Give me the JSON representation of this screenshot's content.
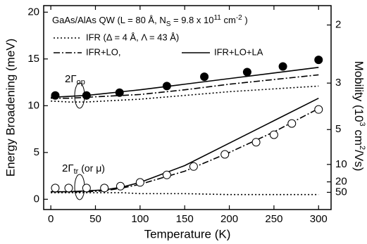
{
  "chart_data": {
    "type": "line",
    "title": [
      "GaAs/AlAs QW (L = 80 Å, N",
      "S",
      " = 9.8 x 10",
      "11",
      " cm",
      "-2",
      " )"
    ],
    "xlabel": "Temperature (K)",
    "ylabel": "Energy Broadening (meV)",
    "y2label": [
      "Mobility (10",
      "3",
      " cm",
      "2",
      "/Vs)"
    ],
    "annotations": [
      [
        "2Γ",
        "op"
      ],
      [
        "2Γ",
        "tr",
        " (or μ)"
      ]
    ],
    "xlim": [
      -8,
      314
    ],
    "xticks": [
      0,
      50,
      100,
      150,
      200,
      250,
      300
    ],
    "ylim": [
      -1.1,
      20.7
    ],
    "yticks": [
      0,
      5,
      10,
      15,
      20
    ],
    "y2lim": [
      -34,
      1.8
    ],
    "y2scale": "reciprocal",
    "y2ticks": [
      2,
      3,
      5,
      10,
      20,
      50
    ],
    "x": [
      0,
      20,
      40,
      60,
      80,
      100,
      150,
      200,
      250,
      300
    ],
    "series": [
      {
        "name": "IFR (Δ = 4 Å, Λ = 43 Å)",
        "style": "dotted",
        "color": "#000",
        "values": [
          10.5,
          10.4,
          10.4,
          10.5,
          10.6,
          10.7,
          11.1,
          11.5,
          11.8,
          12.1
        ]
      },
      {
        "name": "IFR+LO,",
        "style": "dashdot",
        "color": "#000",
        "values": [
          10.8,
          10.8,
          10.9,
          11.0,
          11.1,
          11.2,
          11.7,
          12.3,
          12.8,
          13.3
        ]
      },
      {
        "name": "IFR+LO+LA",
        "style": "solid",
        "color": "#000",
        "values": [
          10.9,
          11.0,
          11.1,
          11.3,
          11.5,
          11.7,
          12.3,
          12.9,
          13.5,
          14.1
        ]
      },
      {
        "style": "dotted",
        "color": "#000",
        "values": [
          0.7,
          0.7,
          0.7,
          0.7,
          0.7,
          0.6,
          0.6,
          0.5,
          0.5,
          0.5
        ]
      },
      {
        "style": "dashdot",
        "color": "#000",
        "values": [
          0.8,
          0.8,
          0.8,
          0.9,
          1.2,
          1.6,
          3.0,
          5.0,
          7.2,
          9.7
        ]
      },
      {
        "style": "solid",
        "color": "#000",
        "values": [
          0.8,
          0.8,
          0.9,
          1.0,
          1.3,
          1.8,
          3.6,
          6.0,
          8.4,
          10.8
        ]
      }
    ],
    "points": [
      {
        "marker": "filled",
        "x": [
          5,
          40,
          77,
          130,
          172,
          220,
          260,
          300
        ],
        "values": [
          11.1,
          11.1,
          11.4,
          12.1,
          13.1,
          13.6,
          14.2,
          14.9
        ]
      },
      {
        "marker": "open",
        "x": [
          5,
          20,
          40,
          60,
          78,
          100,
          130,
          160,
          195,
          230,
          250,
          270,
          300
        ],
        "values": [
          1.2,
          1.2,
          1.2,
          1.2,
          1.4,
          1.8,
          2.6,
          3.5,
          4.8,
          6.1,
          6.9,
          8.1,
          9.6
        ]
      }
    ]
  }
}
